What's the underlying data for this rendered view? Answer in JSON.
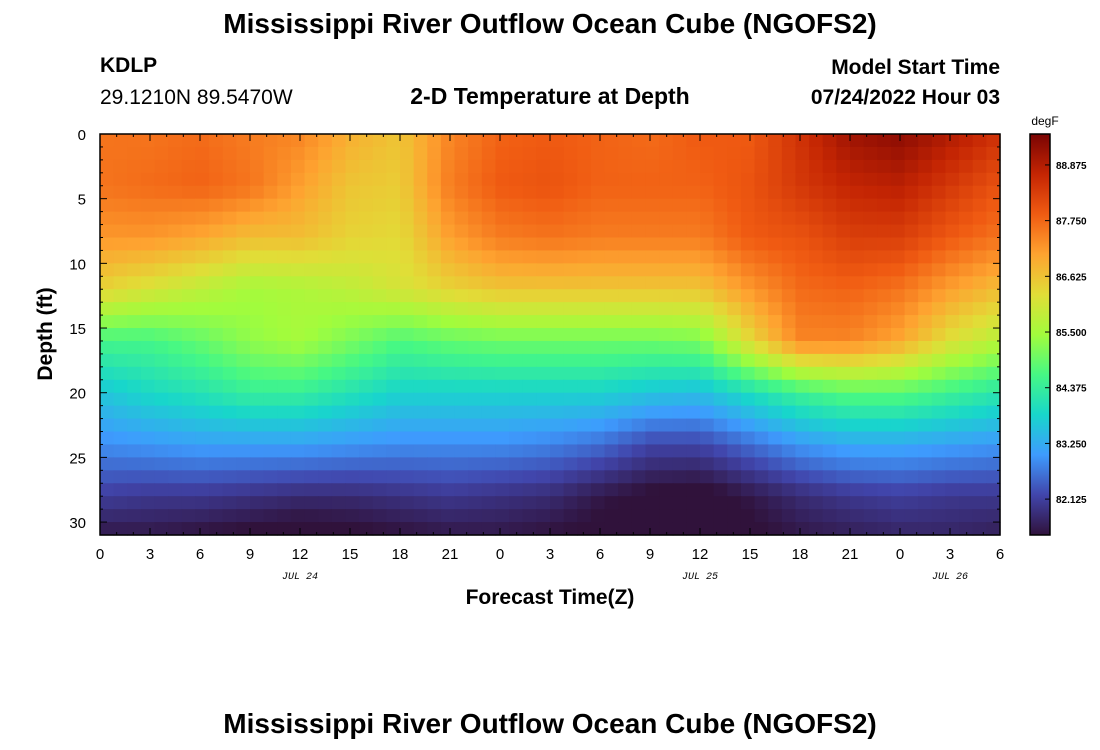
{
  "header": {
    "title": "Mississippi River Outflow Ocean Cube (NGOFS2)",
    "station_id": "KDLP",
    "station_coords": "29.1210N  89.5470W",
    "plot_title": "2-D Temperature at Depth",
    "model_label": "Model Start Time",
    "model_time": "07/24/2022 Hour 03"
  },
  "footer": {
    "title": "Mississippi River Outflow Ocean Cube (NGOFS2)"
  },
  "colors": {
    "colormap": [
      "#30123b",
      "#4145ab",
      "#3e9bfe",
      "#18d6cb",
      "#46f884",
      "#a2fc3c",
      "#e1dd37",
      "#fea330",
      "#f05b12",
      "#c42503",
      "#7a0403"
    ]
  },
  "chart_data": {
    "type": "heatmap",
    "xlabel": "Forecast Time(Z)",
    "ylabel": "Depth (ft)",
    "colorbar_label": "degF",
    "x_range": [
      0,
      54
    ],
    "y_range": [
      0,
      31
    ],
    "x_ticks": [
      0,
      3,
      6,
      9,
      12,
      15,
      18,
      21,
      24,
      27,
      30,
      33,
      36,
      39,
      42,
      45,
      48,
      51,
      54
    ],
    "x_tick_labels": [
      "0",
      "3",
      "6",
      "9",
      "12",
      "15",
      "18",
      "21",
      "0",
      "3",
      "6",
      "9",
      "12",
      "15",
      "18",
      "21",
      "0",
      "3",
      "6"
    ],
    "y_ticks": [
      0,
      5,
      10,
      15,
      20,
      25,
      30
    ],
    "y_tick_labels": [
      "0",
      "5",
      "10",
      "15",
      "20",
      "25",
      "30"
    ],
    "date_labels": [
      {
        "x": 12,
        "label": "JUL 24"
      },
      {
        "x": 36,
        "label": "JUL 25"
      },
      {
        "x": 51,
        "label": "JUL 26"
      }
    ],
    "colorbar_range": [
      81.4,
      89.5
    ],
    "colorbar_ticks": [
      82.125,
      83.25,
      84.375,
      85.5,
      86.625,
      87.75,
      88.875
    ],
    "colorbar_tick_labels": [
      "82.125",
      "83.250",
      "84.375",
      "85.500",
      "86.625",
      "87.750",
      "88.875"
    ],
    "grid_hours": [
      0,
      3,
      6,
      9,
      12,
      15,
      18,
      21,
      24,
      27,
      30,
      33,
      36,
      39,
      42,
      45,
      48,
      51,
      54
    ],
    "grid_depths": [
      0,
      4,
      8,
      12,
      16,
      20,
      24,
      28,
      31
    ],
    "temperature": [
      [
        87.6,
        87.6,
        87.7,
        87.5,
        87.4,
        86.9,
        86.6,
        87.4,
        87.8,
        87.9,
        87.8,
        87.7,
        87.9,
        87.9,
        88.5,
        89.1,
        89.3,
        88.9,
        88.5
      ],
      [
        87.6,
        87.7,
        87.8,
        87.6,
        87.1,
        86.6,
        86.5,
        87.5,
        87.9,
        88.0,
        87.8,
        87.8,
        87.8,
        88.0,
        88.4,
        88.7,
        88.8,
        88.4,
        88.0
      ],
      [
        87.2,
        87.2,
        87.0,
        86.7,
        86.7,
        86.4,
        86.3,
        87.1,
        87.5,
        87.6,
        87.5,
        87.5,
        87.5,
        87.9,
        88.0,
        88.3,
        88.3,
        87.9,
        87.6
      ],
      [
        86.4,
        86.1,
        85.8,
        85.5,
        85.6,
        85.8,
        86.1,
        86.4,
        86.6,
        86.6,
        86.6,
        86.6,
        86.6,
        87.2,
        87.7,
        87.8,
        87.6,
        87.1,
        86.7
      ],
      [
        84.6,
        84.6,
        84.9,
        85.3,
        85.5,
        85.1,
        84.7,
        84.9,
        85.0,
        85.0,
        85.0,
        85.0,
        85.1,
        86.3,
        87.4,
        87.4,
        87.0,
        86.2,
        85.7
      ],
      [
        83.6,
        83.9,
        84.1,
        84.4,
        84.4,
        84.1,
        83.8,
        83.8,
        83.8,
        83.8,
        83.8,
        83.6,
        83.5,
        84.0,
        84.5,
        84.8,
        84.8,
        84.5,
        84.2
      ],
      [
        82.9,
        83.0,
        83.1,
        83.1,
        83.1,
        83.0,
        82.9,
        82.9,
        82.9,
        82.8,
        82.6,
        82.2,
        82.2,
        82.6,
        83.0,
        83.2,
        83.2,
        83.1,
        83.0
      ],
      [
        82.1,
        82.0,
        82.0,
        81.9,
        81.8,
        81.8,
        81.9,
        82.0,
        81.9,
        81.8,
        81.5,
        81.3,
        81.2,
        81.5,
        81.8,
        82.0,
        82.1,
        82.0,
        82.0
      ],
      [
        81.5,
        81.5,
        81.4,
        81.3,
        81.2,
        81.3,
        81.4,
        81.5,
        81.5,
        81.4,
        81.3,
        81.1,
        81.1,
        81.3,
        81.5,
        81.6,
        81.7,
        81.7,
        81.6
      ]
    ]
  }
}
